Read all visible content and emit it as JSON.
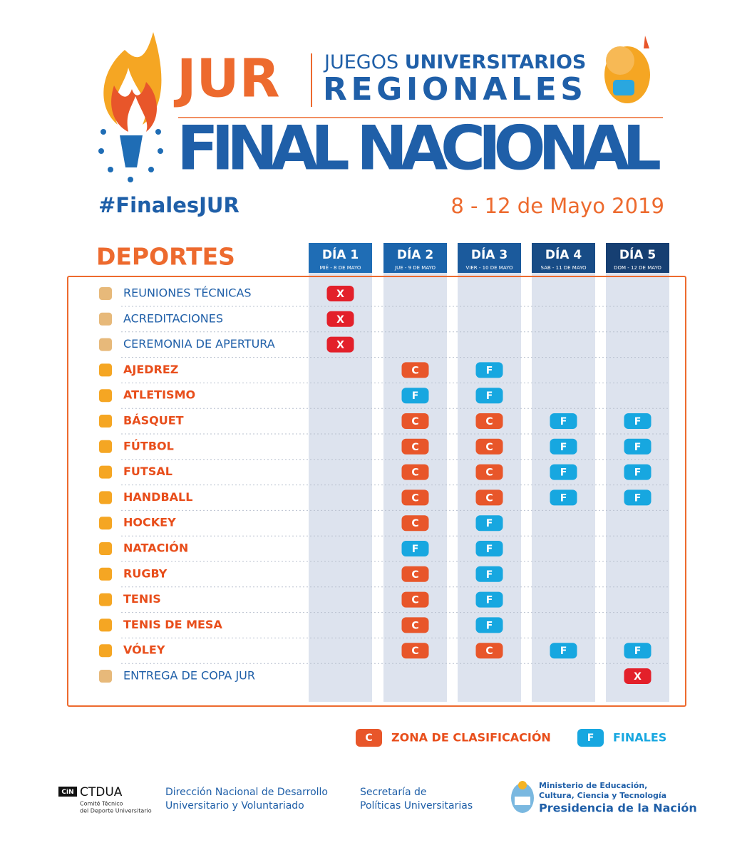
{
  "header": {
    "jur": "JUR",
    "juegos": "JUEGOS",
    "universitarios": "UNIVERSITARIOS",
    "regionales": "REGIONALES",
    "final": "FINAL NACIONAL",
    "hashtag": "#FinalesJUR",
    "dates": "8 - 12 de Mayo 2019"
  },
  "table": {
    "title": "DEPORTES",
    "days": [
      {
        "label": "DÍA 1",
        "sub": "MIÉ - 8 DE MAYO"
      },
      {
        "label": "DÍA 2",
        "sub": "JUE - 9 DE MAYO"
      },
      {
        "label": "DÍA 3",
        "sub": "VIER - 10 DE MAYO"
      },
      {
        "label": "DÍA 4",
        "sub": "SAB - 11 DE MAYO"
      },
      {
        "label": "DÍA 5",
        "sub": "DOM - 12 DE MAYO"
      }
    ],
    "rows": [
      {
        "name": "REUNIONES TÉCNICAS",
        "cells": [
          "X",
          null,
          null,
          null,
          null
        ]
      },
      {
        "name": "ACREDITACIONES",
        "cells": [
          "X",
          null,
          null,
          null,
          null
        ]
      },
      {
        "name": "CEREMONIA DE APERTURA",
        "cells": [
          "X",
          null,
          null,
          null,
          null
        ]
      },
      {
        "name": "AJEDREZ",
        "cells": [
          null,
          "C",
          "F",
          null,
          null
        ]
      },
      {
        "name": "ATLETISMO",
        "cells": [
          null,
          "F",
          "F",
          null,
          null
        ]
      },
      {
        "name": "BÁSQUET",
        "cells": [
          null,
          "C",
          "C",
          "F",
          "F"
        ]
      },
      {
        "name": "FÚTBOL",
        "cells": [
          null,
          "C",
          "C",
          "F",
          "F"
        ]
      },
      {
        "name": "FUTSAL",
        "cells": [
          null,
          "C",
          "C",
          "F",
          "F"
        ]
      },
      {
        "name": "HANDBALL",
        "cells": [
          null,
          "C",
          "C",
          "F",
          "F"
        ]
      },
      {
        "name": "HOCKEY",
        "cells": [
          null,
          "C",
          "F",
          null,
          null
        ]
      },
      {
        "name": "NATACIÓN",
        "cells": [
          null,
          "F",
          "F",
          null,
          null
        ]
      },
      {
        "name": "RUGBY",
        "cells": [
          null,
          "C",
          "F",
          null,
          null
        ]
      },
      {
        "name": "TENIS",
        "cells": [
          null,
          "C",
          "F",
          null,
          null
        ]
      },
      {
        "name": "TENIS DE MESA",
        "cells": [
          null,
          "C",
          "F",
          null,
          null
        ]
      },
      {
        "name": "VÓLEY",
        "cells": [
          null,
          "C",
          "C",
          "F",
          "F"
        ]
      },
      {
        "name": "ENTREGA DE COPA JUR",
        "cells": [
          null,
          null,
          null,
          null,
          "X"
        ]
      }
    ]
  },
  "legend": [
    {
      "key": "C",
      "text": "ZONA DE CLASIFICACIÓN"
    },
    {
      "key": "F",
      "text": "FINALES"
    }
  ],
  "footer": {
    "cin": "CiN",
    "ctdua": "CTDUA",
    "ctdua_sub": [
      "Comité Técnico",
      "del Deporte Universitario"
    ],
    "direccion": [
      "Dirección Nacional de Desarrollo",
      "Universitario y Voluntariado"
    ],
    "secretaria": [
      "Secretaría de",
      "Políticas Universitarias"
    ],
    "ministerio": [
      "Ministerio de Educación,",
      "Cultura, Ciencia y Tecnología"
    ],
    "presidencia": "Presidencia de la Nación"
  }
}
